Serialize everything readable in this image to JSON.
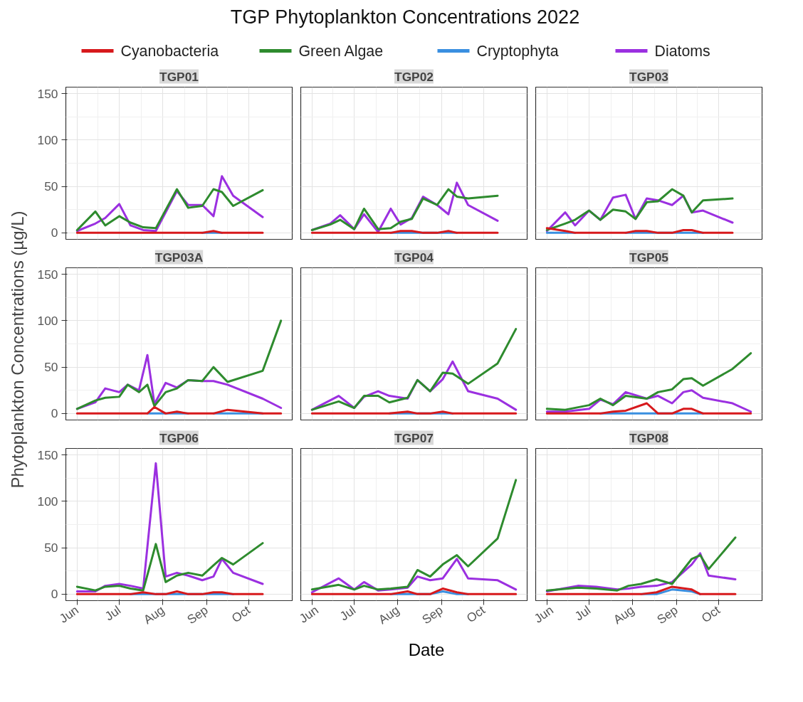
{
  "chart_data": [
    {
      "type": "other",
      "title": "TGP Phytoplankton Concentrations 2022",
      "xlabel": "Date",
      "ylabel": "Phytoplankton Concentrations (µg/L)"
    },
    {
      "type": "line",
      "title": "TGP01",
      "legend": "top",
      "tick_labels": "y",
      "grid": true,
      "xlim": [
        "2022-05-24",
        "2022-11-01"
      ],
      "xticks": [
        {
          "value": "2022-06-01",
          "label": null
        },
        {
          "value": "2022-07-01",
          "label": null
        },
        {
          "value": "2022-08-01",
          "label": null
        },
        {
          "value": "2022-09-01",
          "label": null
        },
        {
          "value": "2022-10-01",
          "label": null
        }
      ],
      "ylim": [
        -7,
        157
      ],
      "yticks": [
        0,
        50,
        100,
        150
      ],
      "x": [
        "2022-06-01",
        "2022-06-14",
        "2022-06-21",
        "2022-07-01",
        "2022-07-09",
        "2022-07-18",
        "2022-07-27",
        "2022-08-11",
        "2022-08-19",
        "2022-08-29",
        "2022-09-06",
        "2022-09-12",
        "2022-09-20",
        "2022-10-11"
      ],
      "series": [
        {
          "name": "Cyanobacteria",
          "color": "#d7191c",
          "values": [
            0,
            0,
            0,
            0,
            0,
            0,
            0,
            0,
            0,
            0,
            2,
            0,
            0,
            0
          ]
        },
        {
          "name": "Green Algae",
          "color": "#2e8b2e",
          "values": [
            3,
            23,
            8,
            18,
            11,
            6,
            5,
            47,
            27,
            29,
            47,
            44,
            29,
            46
          ]
        },
        {
          "name": "Cryptophyta",
          "color": "#3a8fe0",
          "values": [
            null,
            null,
            null,
            null,
            null,
            null,
            null,
            null,
            null,
            0,
            0,
            0,
            null,
            null
          ]
        },
        {
          "name": "Diatoms",
          "color": "#9b30e0",
          "values": [
            2,
            10,
            16,
            31,
            8,
            3,
            2,
            45,
            30,
            30,
            18,
            61,
            40,
            17
          ]
        }
      ]
    },
    {
      "type": "line",
      "title": "TGP02",
      "tick_labels": false,
      "grid": true,
      "xlim": [
        "2022-05-24",
        "2022-11-01"
      ],
      "xticks": [
        {
          "value": "2022-06-01",
          "label": null
        },
        {
          "value": "2022-07-01",
          "label": null
        },
        {
          "value": "2022-08-01",
          "label": null
        },
        {
          "value": "2022-09-01",
          "label": null
        },
        {
          "value": "2022-10-01",
          "label": null
        }
      ],
      "ylim": [
        -7,
        157
      ],
      "yticks": [
        0,
        50,
        100,
        150
      ],
      "x": [
        "2022-06-01",
        "2022-06-14",
        "2022-06-21",
        "2022-07-01",
        "2022-07-08",
        "2022-07-18",
        "2022-07-27",
        "2022-08-03",
        "2022-08-11",
        "2022-08-19",
        "2022-08-29",
        "2022-09-06",
        "2022-09-12",
        "2022-09-20",
        "2022-10-11"
      ],
      "series": [
        {
          "color": "#d7191c",
          "values": [
            0,
            0,
            0,
            0,
            0,
            0,
            0,
            2,
            2,
            0,
            0,
            2,
            0,
            0,
            0
          ]
        },
        {
          "color": "#2e8b2e",
          "values": [
            3,
            9,
            14,
            4,
            26,
            4,
            5,
            12,
            15,
            37,
            30,
            47,
            39,
            37,
            40
          ]
        },
        {
          "color": "#3a8fe0",
          "values": [
            null,
            null,
            null,
            null,
            null,
            null,
            0,
            0,
            0,
            0,
            0,
            0,
            0,
            null,
            null
          ]
        },
        {
          "color": "#9b30e0",
          "values": [
            3,
            10,
            19,
            4,
            20,
            1,
            26,
            9,
            16,
            39,
            30,
            20,
            54,
            30,
            13
          ]
        }
      ]
    },
    {
      "type": "line",
      "title": "TGP03",
      "tick_labels": false,
      "grid": true,
      "xlim": [
        "2022-05-24",
        "2022-11-01"
      ],
      "xticks": [
        {
          "value": "2022-06-01",
          "label": null
        },
        {
          "value": "2022-07-01",
          "label": null
        },
        {
          "value": "2022-08-01",
          "label": null
        },
        {
          "value": "2022-09-01",
          "label": null
        },
        {
          "value": "2022-10-01",
          "label": null
        }
      ],
      "ylim": [
        -7,
        157
      ],
      "yticks": [
        0,
        50,
        100,
        150
      ],
      "x": [
        "2022-06-01",
        "2022-06-14",
        "2022-06-21",
        "2022-07-01",
        "2022-07-09",
        "2022-07-18",
        "2022-07-27",
        "2022-08-03",
        "2022-08-11",
        "2022-08-19",
        "2022-08-29",
        "2022-09-06",
        "2022-09-12",
        "2022-09-20",
        "2022-10-11"
      ],
      "series": [
        {
          "color": "#d7191c",
          "values": [
            5,
            2,
            0,
            0,
            0,
            0,
            0,
            2,
            2,
            0,
            0,
            3,
            3,
            0,
            0
          ]
        },
        {
          "color": "#2e8b2e",
          "values": [
            3,
            10,
            14,
            24,
            14,
            25,
            23,
            15,
            33,
            34,
            47,
            40,
            22,
            35,
            37
          ]
        },
        {
          "color": "#3a8fe0",
          "values": [
            0,
            0,
            0,
            null,
            null,
            null,
            0,
            0,
            0,
            0,
            0,
            0,
            0,
            0,
            null
          ]
        },
        {
          "color": "#9b30e0",
          "values": [
            2,
            22,
            8,
            24,
            14,
            38,
            41,
            15,
            37,
            35,
            30,
            40,
            22,
            24,
            11
          ]
        }
      ]
    },
    {
      "type": "line",
      "title": "TGP03A",
      "tick_labels": "y",
      "grid": true,
      "xlim": [
        "2022-05-24",
        "2022-11-01"
      ],
      "xticks": [
        {
          "value": "2022-06-01",
          "label": null
        },
        {
          "value": "2022-07-01",
          "label": null
        },
        {
          "value": "2022-08-01",
          "label": null
        },
        {
          "value": "2022-09-01",
          "label": null
        },
        {
          "value": "2022-10-01",
          "label": null
        }
      ],
      "ylim": [
        -7,
        157
      ],
      "yticks": [
        0,
        50,
        100,
        150
      ],
      "x": [
        "2022-06-01",
        "2022-06-14",
        "2022-06-21",
        "2022-07-01",
        "2022-07-07",
        "2022-07-15",
        "2022-07-21",
        "2022-07-26",
        "2022-08-03",
        "2022-08-11",
        "2022-08-19",
        "2022-08-29",
        "2022-09-06",
        "2022-09-16",
        "2022-10-11",
        "2022-10-24"
      ],
      "series": [
        {
          "color": "#d7191c",
          "values": [
            0,
            0,
            0,
            0,
            0,
            0,
            0,
            7,
            0,
            2,
            0,
            0,
            0,
            4,
            0,
            0
          ]
        },
        {
          "color": "#2e8b2e",
          "values": [
            5,
            14,
            17,
            18,
            31,
            23,
            31,
            8,
            23,
            27,
            36,
            35,
            50,
            34,
            46,
            100
          ]
        },
        {
          "color": "#3a8fe0",
          "values": [
            null,
            null,
            null,
            null,
            null,
            null,
            0,
            0,
            0,
            0,
            0,
            null,
            0,
            0,
            0,
            null
          ]
        },
        {
          "color": "#9b30e0",
          "values": [
            5,
            12,
            27,
            23,
            31,
            25,
            63,
            10,
            33,
            28,
            36,
            35,
            35,
            31,
            16,
            6
          ]
        }
      ]
    },
    {
      "type": "line",
      "title": "TGP04",
      "tick_labels": false,
      "grid": true,
      "xlim": [
        "2022-05-24",
        "2022-11-01"
      ],
      "xticks": [
        {
          "value": "2022-06-01",
          "label": null
        },
        {
          "value": "2022-07-01",
          "label": null
        },
        {
          "value": "2022-08-01",
          "label": null
        },
        {
          "value": "2022-09-01",
          "label": null
        },
        {
          "value": "2022-10-01",
          "label": null
        }
      ],
      "ylim": [
        -7,
        157
      ],
      "yticks": [
        0,
        50,
        100,
        150
      ],
      "x": [
        "2022-06-01",
        "2022-06-20",
        "2022-07-01",
        "2022-07-08",
        "2022-07-18",
        "2022-07-26",
        "2022-08-08",
        "2022-08-15",
        "2022-08-24",
        "2022-09-02",
        "2022-09-09",
        "2022-09-20",
        "2022-10-11",
        "2022-10-24"
      ],
      "series": [
        {
          "color": "#d7191c",
          "values": [
            0,
            0,
            0,
            0,
            0,
            0,
            2,
            0,
            0,
            2,
            0,
            0,
            0,
            0
          ]
        },
        {
          "color": "#2e8b2e",
          "values": [
            4,
            13,
            6,
            19,
            19,
            12,
            17,
            36,
            24,
            44,
            43,
            32,
            54,
            91
          ]
        },
        {
          "color": "#3a8fe0",
          "values": [
            null,
            null,
            null,
            null,
            null,
            0,
            0,
            0,
            0,
            0,
            0,
            null,
            null,
            null
          ]
        },
        {
          "color": "#9b30e0",
          "values": [
            4,
            19,
            6,
            18,
            24,
            19,
            16,
            36,
            24,
            37,
            56,
            24,
            16,
            4
          ]
        }
      ]
    },
    {
      "type": "line",
      "title": "TGP05",
      "tick_labels": false,
      "grid": true,
      "xlim": [
        "2022-05-24",
        "2022-11-01"
      ],
      "xticks": [
        {
          "value": "2022-06-01",
          "label": null
        },
        {
          "value": "2022-07-01",
          "label": null
        },
        {
          "value": "2022-08-01",
          "label": null
        },
        {
          "value": "2022-09-01",
          "label": null
        },
        {
          "value": "2022-10-01",
          "label": null
        }
      ],
      "ylim": [
        -7,
        157
      ],
      "yticks": [
        0,
        50,
        100,
        150
      ],
      "x": [
        "2022-06-01",
        "2022-06-14",
        "2022-07-01",
        "2022-07-09",
        "2022-07-18",
        "2022-07-27",
        "2022-08-11",
        "2022-08-19",
        "2022-08-29",
        "2022-09-06",
        "2022-09-12",
        "2022-09-20",
        "2022-10-11",
        "2022-10-24"
      ],
      "series": [
        {
          "color": "#d7191c",
          "values": [
            0,
            0,
            0,
            0,
            2,
            3,
            11,
            0,
            0,
            5,
            5,
            0,
            0,
            0
          ]
        },
        {
          "color": "#2e8b2e",
          "values": [
            5,
            4,
            9,
            16,
            9,
            19,
            16,
            23,
            26,
            37,
            38,
            30,
            48,
            65
          ]
        },
        {
          "color": "#3a8fe0",
          "values": [
            null,
            null,
            null,
            0,
            0,
            0,
            0,
            0,
            0,
            0,
            0,
            0,
            null,
            null
          ]
        },
        {
          "color": "#9b30e0",
          "values": [
            2,
            2,
            5,
            15,
            10,
            23,
            16,
            19,
            11,
            23,
            25,
            17,
            11,
            2
          ]
        }
      ]
    },
    {
      "type": "line",
      "title": "TGP06",
      "grid": true,
      "xlim": [
        "2022-05-24",
        "2022-11-01"
      ],
      "xticks": [
        {
          "value": "2022-06-01",
          "label": "Jun"
        },
        {
          "value": "2022-07-01",
          "label": "Jul"
        },
        {
          "value": "2022-08-01",
          "label": "Aug"
        },
        {
          "value": "2022-09-01",
          "label": "Sep"
        },
        {
          "value": "2022-10-01",
          "label": "Oct"
        }
      ],
      "ylim": [
        -7,
        157
      ],
      "yticks": [
        0,
        50,
        100,
        150
      ],
      "x": [
        "2022-06-01",
        "2022-06-14",
        "2022-06-21",
        "2022-07-01",
        "2022-07-09",
        "2022-07-18",
        "2022-07-27",
        "2022-08-03",
        "2022-08-11",
        "2022-08-19",
        "2022-08-29",
        "2022-09-06",
        "2022-09-12",
        "2022-09-20",
        "2022-10-11"
      ],
      "series": [
        {
          "color": "#d7191c",
          "values": [
            0,
            0,
            0,
            0,
            0,
            2,
            0,
            0,
            3,
            0,
            0,
            2,
            2,
            0,
            0
          ]
        },
        {
          "color": "#2e8b2e",
          "values": [
            8,
            4,
            8,
            9,
            6,
            4,
            54,
            13,
            20,
            23,
            20,
            31,
            39,
            32,
            55
          ]
        },
        {
          "color": "#3a8fe0",
          "values": [
            null,
            null,
            null,
            null,
            0,
            0,
            0,
            0,
            0,
            0,
            0,
            0,
            0,
            0,
            null
          ]
        },
        {
          "color": "#9b30e0",
          "values": [
            3,
            3,
            9,
            11,
            9,
            6,
            141,
            19,
            23,
            20,
            15,
            19,
            38,
            23,
            11
          ]
        }
      ]
    },
    {
      "type": "line",
      "title": "TGP07",
      "tick_labels": "x",
      "grid": true,
      "xlim": [
        "2022-05-24",
        "2022-11-01"
      ],
      "xticks": [
        {
          "value": "2022-06-01",
          "label": "Jun"
        },
        {
          "value": "2022-07-01",
          "label": "Jul"
        },
        {
          "value": "2022-08-01",
          "label": "Aug"
        },
        {
          "value": "2022-09-01",
          "label": "Sep"
        },
        {
          "value": "2022-10-01",
          "label": "Oct"
        }
      ],
      "ylim": [
        -7,
        157
      ],
      "yticks": [
        0,
        50,
        100,
        150
      ],
      "x": [
        "2022-06-01",
        "2022-06-20",
        "2022-07-01",
        "2022-07-08",
        "2022-07-18",
        "2022-07-27",
        "2022-08-08",
        "2022-08-15",
        "2022-08-24",
        "2022-09-02",
        "2022-09-12",
        "2022-09-20",
        "2022-10-11",
        "2022-10-24"
      ],
      "series": [
        {
          "color": "#d7191c",
          "values": [
            0,
            0,
            0,
            0,
            0,
            0,
            3,
            0,
            0,
            6,
            2,
            0,
            0,
            0
          ]
        },
        {
          "color": "#2e8b2e",
          "values": [
            5,
            10,
            5,
            9,
            5,
            6,
            8,
            26,
            19,
            32,
            42,
            30,
            60,
            123
          ]
        },
        {
          "color": "#3a8fe0",
          "values": [
            null,
            null,
            null,
            null,
            null,
            0,
            0,
            0,
            0,
            3,
            0,
            0,
            null,
            null
          ]
        },
        {
          "color": "#9b30e0",
          "values": [
            2,
            17,
            5,
            13,
            4,
            5,
            7,
            19,
            15,
            17,
            38,
            17,
            15,
            5
          ]
        }
      ]
    },
    {
      "type": "line",
      "title": "TGP08",
      "tick_labels": "x",
      "grid": true,
      "xlim": [
        "2022-05-24",
        "2022-11-01"
      ],
      "xticks": [
        {
          "value": "2022-06-01",
          "label": "Jun"
        },
        {
          "value": "2022-07-01",
          "label": "Jul"
        },
        {
          "value": "2022-08-01",
          "label": "Aug"
        },
        {
          "value": "2022-09-01",
          "label": "Sep"
        },
        {
          "value": "2022-10-01",
          "label": "Oct"
        }
      ],
      "ylim": [
        -7,
        157
      ],
      "yticks": [
        0,
        50,
        100,
        150
      ],
      "x": [
        "2022-06-01",
        "2022-06-23",
        "2022-07-06",
        "2022-07-21",
        "2022-07-29",
        "2022-08-07",
        "2022-08-18",
        "2022-08-29",
        "2022-09-12",
        "2022-09-18",
        "2022-09-24",
        "2022-10-13"
      ],
      "series": [
        {
          "color": "#d7191c",
          "values": [
            0,
            0,
            0,
            0,
            0,
            0,
            2,
            8,
            5,
            0,
            0,
            0
          ]
        },
        {
          "color": "#2e8b2e",
          "values": [
            4,
            7,
            6,
            4,
            9,
            11,
            16,
            11,
            38,
            42,
            27,
            61
          ]
        },
        {
          "color": "#3a8fe0",
          "values": [
            null,
            null,
            null,
            null,
            null,
            0,
            0,
            5,
            3,
            0,
            null,
            null
          ]
        },
        {
          "color": "#9b30e0",
          "values": [
            3,
            9,
            8,
            5,
            6,
            8,
            9,
            13,
            32,
            44,
            20,
            16
          ]
        }
      ]
    }
  ]
}
